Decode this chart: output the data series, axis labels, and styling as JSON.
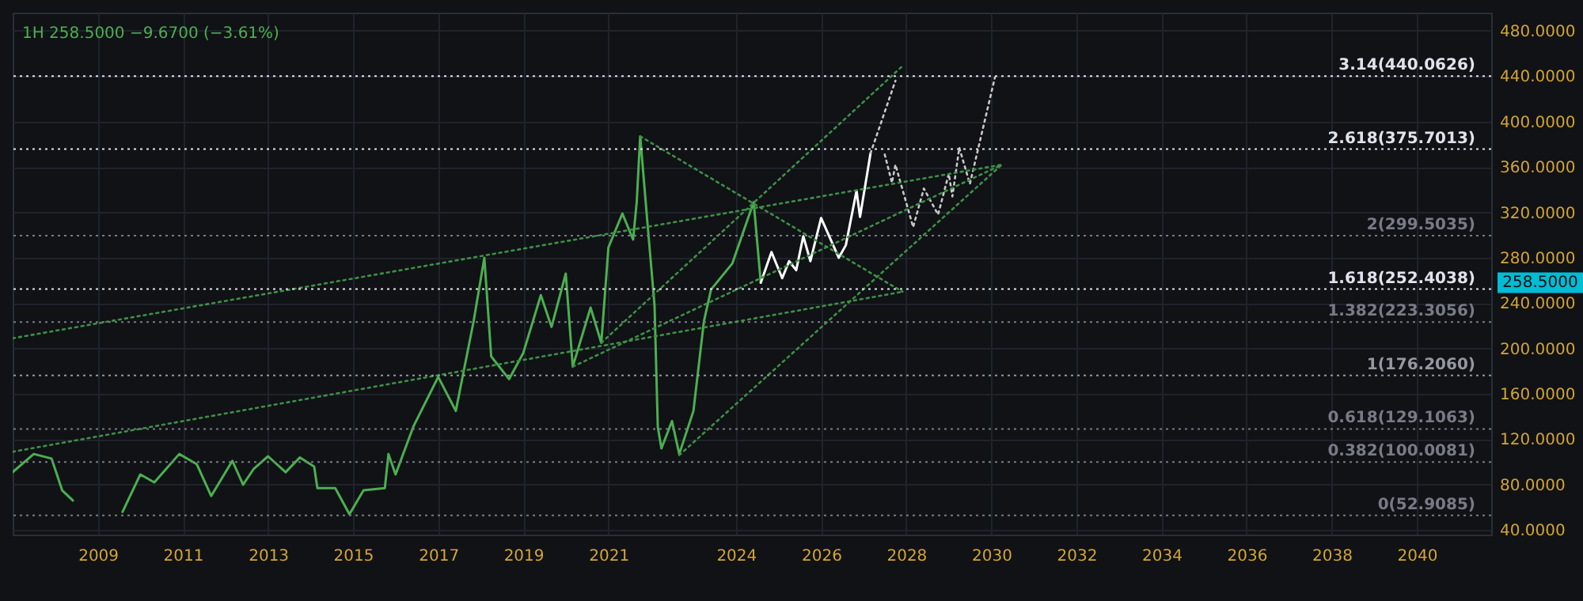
{
  "chart_data": {
    "type": "line",
    "title": "1H 258.5000 −9.6700 (−3.61%)",
    "xlim": [
      "2007-01",
      "2041-10"
    ],
    "ylim": [
      36,
      496
    ],
    "xticks": [
      "2009",
      "2011",
      "2013",
      "2015",
      "2017",
      "2019",
      "2021",
      "2024",
      "2026",
      "2028",
      "2030",
      "2032",
      "2034",
      "2036",
      "2038",
      "2040"
    ],
    "yticks": [
      {
        "value": 40,
        "label": "40.0000"
      },
      {
        "value": 80,
        "label": "80.0000"
      },
      {
        "value": 120,
        "label": "120.0000"
      },
      {
        "value": 160,
        "label": "160.0000"
      },
      {
        "value": 200,
        "label": "200.0000"
      },
      {
        "value": 240,
        "label": "240.0000"
      },
      {
        "value": 280,
        "label": "280.0000"
      },
      {
        "value": 320,
        "label": "320.0000"
      },
      {
        "value": 360,
        "label": "360.0000"
      },
      {
        "value": 400,
        "label": "400.0000"
      },
      {
        "value": 440,
        "label": "440.0000"
      },
      {
        "value": 480,
        "label": "480.0000"
      }
    ],
    "grid": true,
    "series": [
      {
        "color": "#4caf50",
        "line_style": "solid",
        "x": [
          "2007-01",
          "2007-07",
          "2007-12",
          "2008-03",
          "2008-06"
        ],
        "values": [
          91,
          107,
          103,
          75,
          66
        ]
      },
      {
        "color": "#4caf50",
        "line_style": "solid",
        "x": [
          "2009-08",
          "2010-01",
          "2010-05",
          "2010-12",
          "2011-05",
          "2011-09",
          "2012-03",
          "2012-06",
          "2012-09",
          "2013-01",
          "2013-06",
          "2013-10",
          "2014-02",
          "2014-03",
          "2014-08",
          "2014-12",
          "2015-04",
          "2015-10",
          "2015-11",
          "2016-01",
          "2016-06",
          "2017-01",
          "2017-06",
          "2017-11",
          "2018-02",
          "2018-04",
          "2018-09",
          "2019-01",
          "2019-06",
          "2019-09",
          "2020-01",
          "2020-03",
          "2020-08",
          "2020-11",
          "2021-01",
          "2021-05",
          "2021-08",
          "2021-09",
          "2021-10",
          "2021-12",
          "2022-02",
          "2022-03",
          "2022-04",
          "2022-07",
          "2022-09",
          "2023-01",
          "2023-04",
          "2023-06",
          "2023-12",
          "2024-06",
          "2024-08"
        ],
        "values": [
          56,
          89,
          82,
          107,
          98,
          70,
          101,
          80,
          94,
          105,
          91,
          104,
          96,
          77,
          77,
          54,
          75,
          77,
          107,
          89,
          131,
          175,
          145,
          224,
          280,
          193,
          173,
          196,
          247,
          219,
          266,
          184,
          236,
          205,
          289,
          319,
          296,
          329,
          387,
          312,
          238,
          131,
          112,
          136,
          107,
          145,
          224,
          252,
          275,
          329,
          258
        ]
      },
      {
        "color": "#ffffff",
        "line_style": "solid",
        "x": [
          "2024-08",
          "2024-11",
          "2025-02",
          "2025-04",
          "2025-06",
          "2025-08",
          "2025-10",
          "2026-01",
          "2026-06",
          "2026-08",
          "2026-11",
          "2026-12",
          "2027-03"
        ],
        "values": [
          258,
          285,
          262,
          277,
          269,
          299,
          277,
          315,
          280,
          291,
          339,
          316,
          372
        ]
      },
      {
        "color": "#c8c8c8",
        "line_style": "dotted",
        "x": [
          "2027-03",
          "2027-10"
        ],
        "values": [
          372,
          436
        ]
      },
      {
        "color": "#c8c8c8",
        "line_style": "dotted",
        "x": [
          "2027-07",
          "2027-09",
          "2027-10",
          "2028-03",
          "2028-06",
          "2028-10",
          "2029-01",
          "2029-02",
          "2029-04",
          "2029-07",
          "2030-02"
        ],
        "values": [
          371,
          346,
          362,
          307,
          341,
          318,
          354,
          334,
          377,
          345,
          439
        ]
      },
      {
        "color": "#3f8f46",
        "line_style": "dotted",
        "x": [
          "2007-01",
          "2030-04"
        ],
        "values": [
          209,
          362
        ]
      },
      {
        "color": "#3f8f46",
        "line_style": "dotted",
        "x": [
          "2007-01",
          "2027-12"
        ],
        "values": [
          109,
          250
        ]
      },
      {
        "color": "#3f8f46",
        "line_style": "dotted",
        "x": [
          "2021-10",
          "2027-12"
        ],
        "values": [
          387,
          250
        ]
      },
      {
        "color": "#3f8f46",
        "line_style": "dotted",
        "x": [
          "2020-11",
          "2027-12"
        ],
        "values": [
          205,
          449
        ]
      },
      {
        "color": "#3f8f46",
        "line_style": "dotted",
        "x": [
          "2020-03",
          "2030-04"
        ],
        "values": [
          184,
          362
        ]
      },
      {
        "color": "#3f8f46",
        "line_style": "dotted",
        "x": [
          "2022-09",
          "2030-04"
        ],
        "values": [
          106,
          362
        ]
      }
    ],
    "ref_lines": [
      {
        "axis": "y",
        "value": 52.9085,
        "label": "0(52.9085)",
        "color": "#787b86",
        "line_style": "dotted"
      },
      {
        "axis": "y",
        "value": 100.0081,
        "label": "0.382(100.0081)",
        "color": "#787b86",
        "line_style": "dotted"
      },
      {
        "axis": "y",
        "value": 129.1063,
        "label": "0.618(129.1063)",
        "color": "#787b86",
        "line_style": "dotted"
      },
      {
        "axis": "y",
        "value": 176.206,
        "label": "1(176.2060)",
        "color": "#9598a1",
        "line_style": "dotted"
      },
      {
        "axis": "y",
        "value": 223.3056,
        "label": "1.382(223.3056)",
        "color": "#787b86",
        "line_style": "dotted"
      },
      {
        "axis": "y",
        "value": 252.4038,
        "label": "1.618(252.4038)",
        "color": "#e0e3eb",
        "line_style": "dotted"
      },
      {
        "axis": "y",
        "value": 299.5035,
        "label": "2(299.5035)",
        "color": "#787b86",
        "line_style": "dotted"
      },
      {
        "axis": "y",
        "value": 375.7013,
        "label": "2.618(375.7013)",
        "color": "#e0e3eb",
        "line_style": "dotted"
      },
      {
        "axis": "y",
        "value": 440.0626,
        "label": "3.14(440.0626)",
        "color": "#e0e3eb",
        "line_style": "dotted"
      }
    ],
    "annotations": [
      "258.5000"
    ]
  }
}
